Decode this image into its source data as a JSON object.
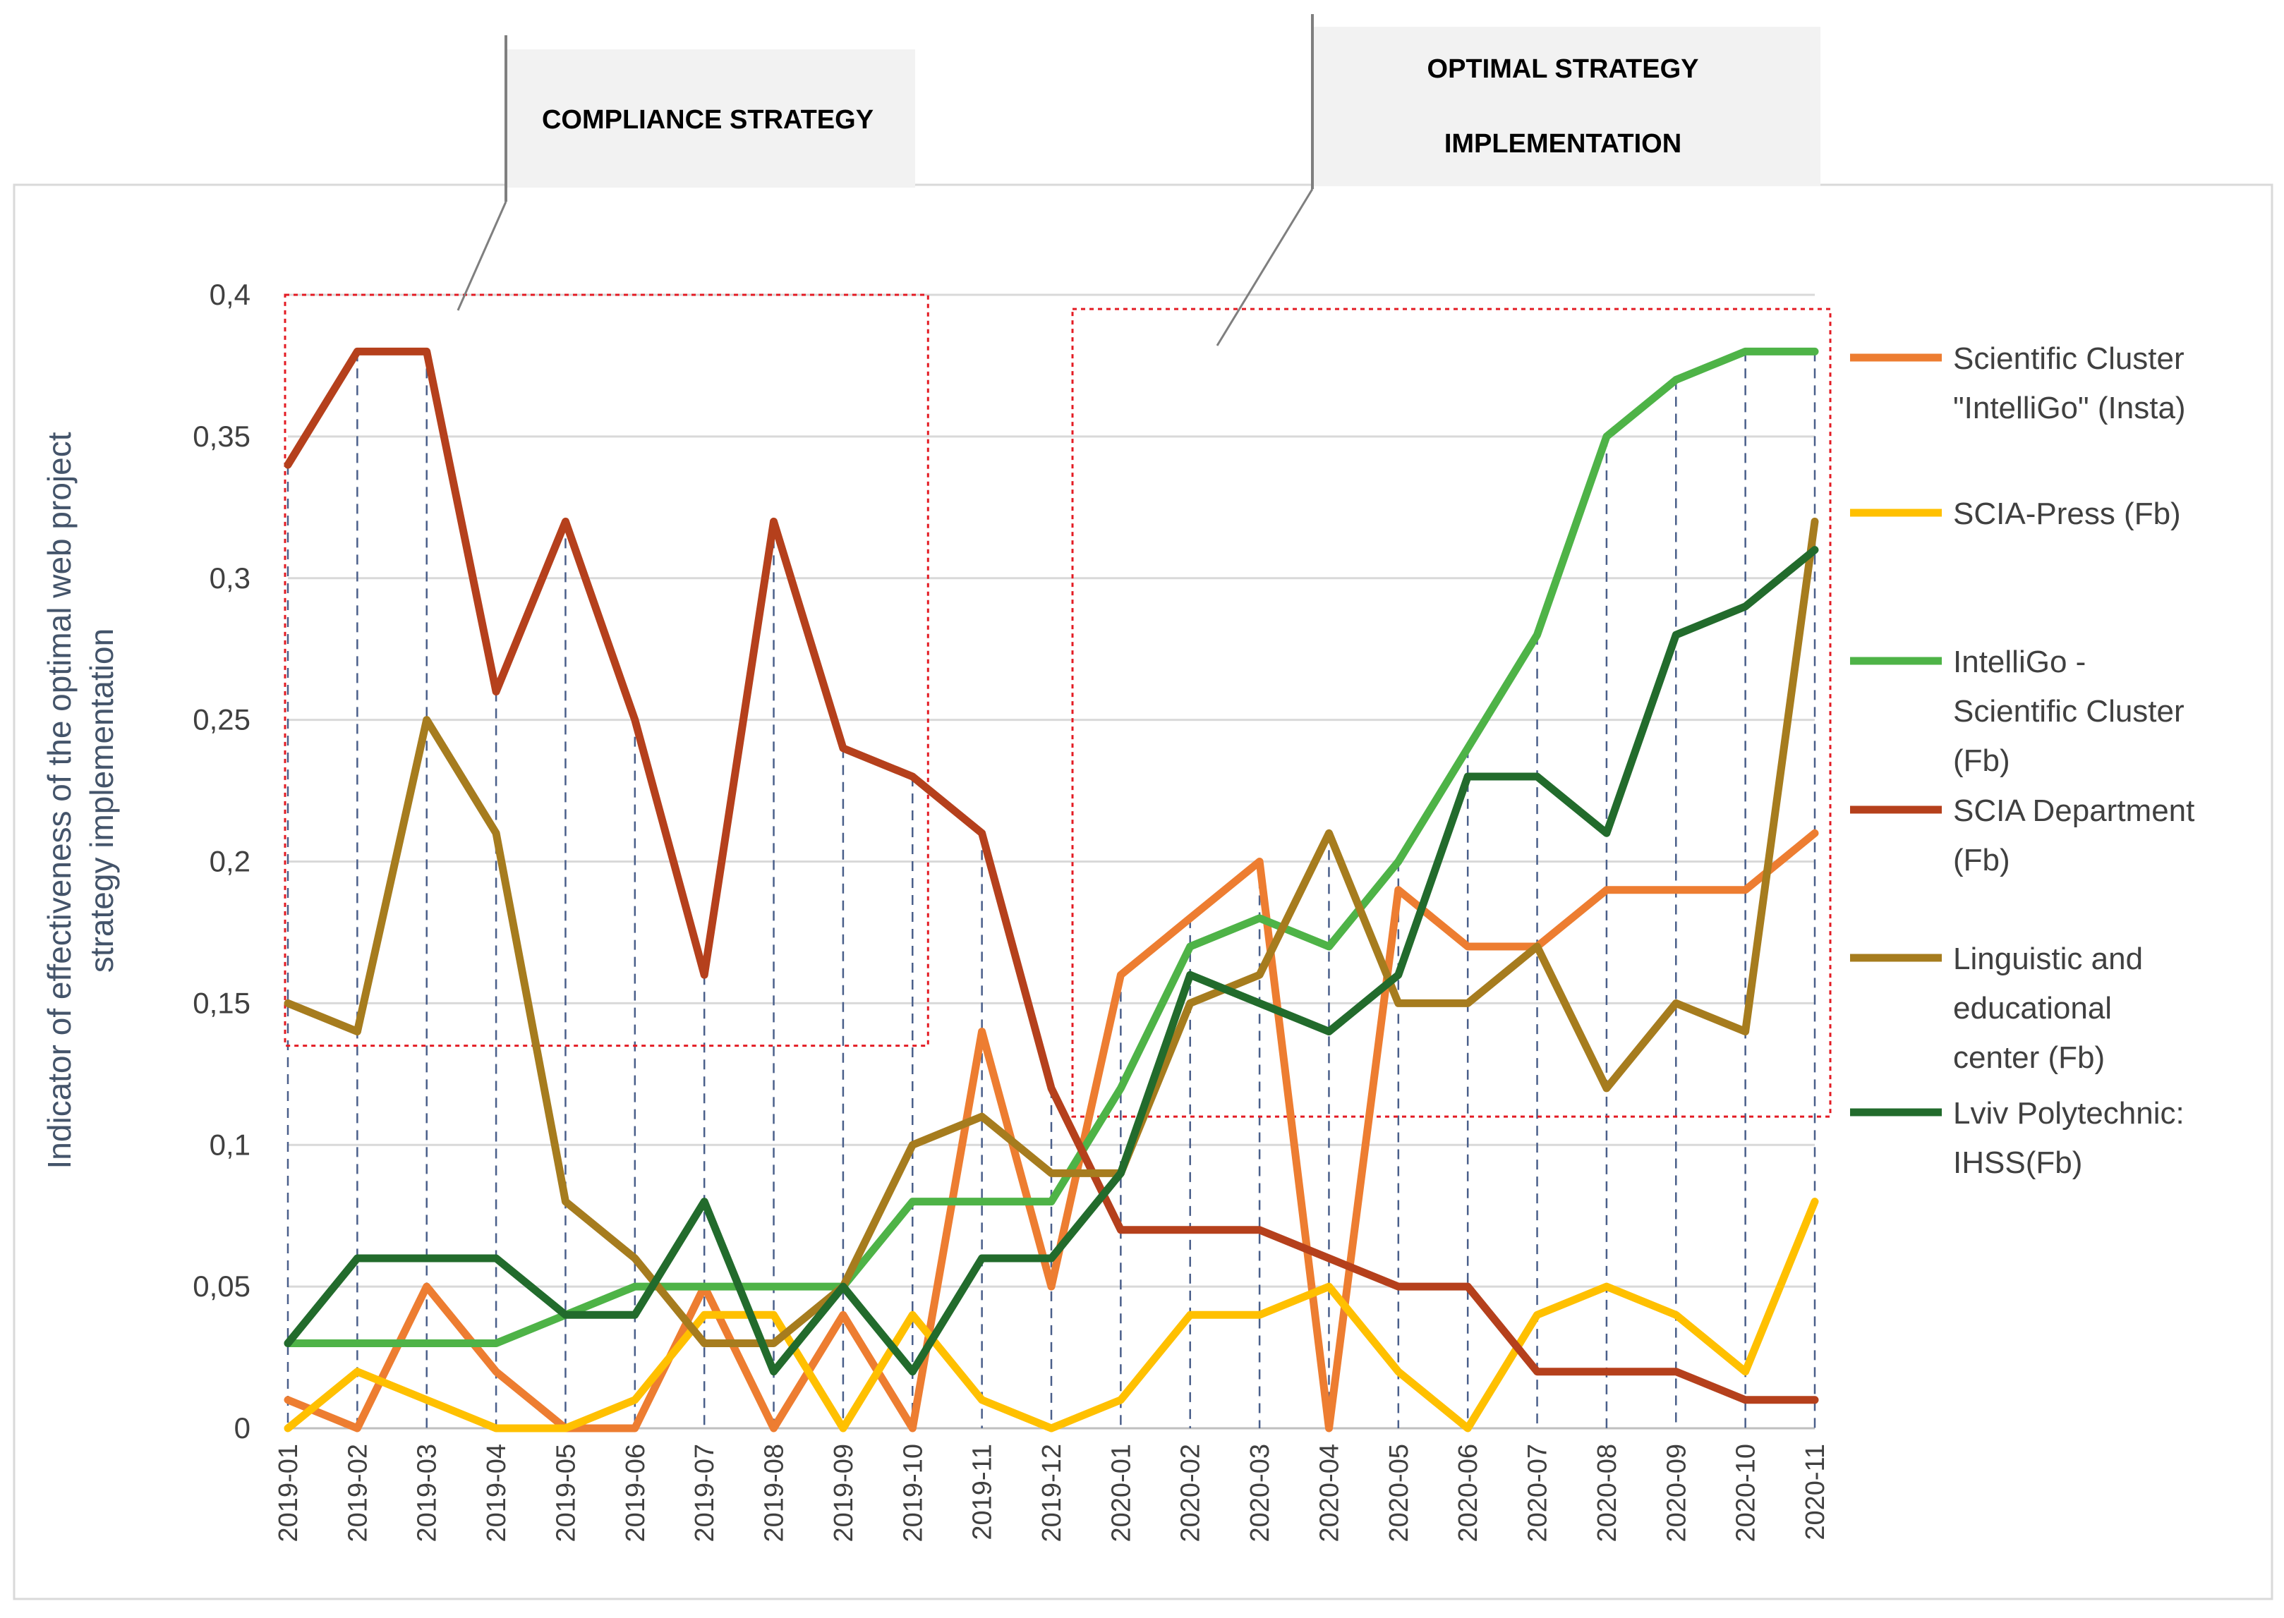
{
  "chart_data": {
    "type": "line",
    "title": "",
    "xlabel": "",
    "ylabel": "Indicator of effectiveness of the optimal web project strategy implementation",
    "ylabel_lines": [
      "Indicator of effectiveness of the optimal web project",
      "strategy implementation"
    ],
    "ylim": [
      0,
      0.4
    ],
    "yticks": [
      "0",
      "0,05",
      "0,1",
      "0,15",
      "0,2",
      "0,25",
      "0,3",
      "0,35",
      "0,4"
    ],
    "x": [
      "2019-01",
      "2019-02",
      "2019-03",
      "2019-04",
      "2019-05",
      "2019-06",
      "2019-07",
      "2019-08",
      "2019-09",
      "2019-10",
      "2019-11",
      "2019-12",
      "2020-01",
      "2020-02",
      "2020-03",
      "2020-04",
      "2020-05",
      "2020-06",
      "2020-07",
      "2020-08",
      "2020-09",
      "2020-10",
      "2020-11"
    ],
    "grid": true,
    "legend_position": "right",
    "series": [
      {
        "name": "Scientific Cluster \"IntelliGo\" (Insta)",
        "legend_lines": [
          "Scientific Cluster",
          "\"IntelliGo\" (Insta)"
        ],
        "color": "#ed7d31",
        "values": [
          0.01,
          0,
          0.05,
          0.02,
          0,
          0,
          0.05,
          0,
          0.04,
          0,
          0.14,
          0.05,
          0.16,
          0.18,
          0.2,
          0,
          0.19,
          0.17,
          0.17,
          0.19,
          0.19,
          0.19,
          0.21
        ]
      },
      {
        "name": "SCIA-Press (Fb)",
        "legend_lines": [
          "SCIA-Press (Fb)"
        ],
        "color": "#ffc000",
        "values": [
          0,
          0.02,
          0.01,
          0,
          0,
          0.01,
          0.04,
          0.04,
          0,
          0.04,
          0.01,
          0,
          0.01,
          0.04,
          0.04,
          0.05,
          0.02,
          0,
          0.04,
          0.05,
          0.04,
          0.02,
          0.08
        ]
      },
      {
        "name": "IntelliGo - Scientific Cluster (Fb)",
        "legend_lines": [
          "IntelliGo -",
          "Scientific Cluster",
          "(Fb)"
        ],
        "color": "#4eb347",
        "values": [
          0.03,
          0.03,
          0.03,
          0.03,
          0.04,
          0.05,
          0.05,
          0.05,
          0.05,
          0.08,
          0.08,
          0.08,
          0.12,
          0.17,
          0.18,
          0.17,
          0.2,
          0.24,
          0.28,
          0.35,
          0.37,
          0.38,
          0.38
        ]
      },
      {
        "name": "SCIA Department (Fb)",
        "legend_lines": [
          "SCIA Department",
          "(Fb)"
        ],
        "color": "#b5401c",
        "values": [
          0.34,
          0.38,
          0.38,
          0.26,
          0.32,
          0.25,
          0.16,
          0.32,
          0.24,
          0.23,
          0.21,
          0.12,
          0.07,
          0.07,
          0.07,
          0.06,
          0.05,
          0.05,
          0.02,
          0.02,
          0.02,
          0.01,
          0.01
        ]
      },
      {
        "name": "Linguistic and educational center (Fb)",
        "legend_lines": [
          "Linguistic and",
          "educational",
          "center (Fb)"
        ],
        "color": "#a67c1e",
        "values": [
          0.15,
          0.14,
          0.25,
          0.21,
          0.08,
          0.06,
          0.03,
          0.03,
          0.05,
          0.1,
          0.11,
          0.09,
          0.09,
          0.15,
          0.16,
          0.21,
          0.15,
          0.15,
          0.17,
          0.12,
          0.15,
          0.14,
          0.32
        ]
      },
      {
        "name": "Lviv Polytechnic: IHSS(Fb)",
        "legend_lines": [
          "Lviv Polytechnic:",
          "IHSS(Fb)"
        ],
        "color": "#226b2c",
        "values": [
          0.03,
          0.06,
          0.06,
          0.06,
          0.04,
          0.04,
          0.08,
          0.02,
          0.05,
          0.02,
          0.06,
          0.06,
          0.09,
          0.16,
          0.15,
          0.14,
          0.16,
          0.23,
          0.23,
          0.21,
          0.28,
          0.29,
          0.31
        ]
      }
    ],
    "annotations": [
      {
        "lines": [
          "COMPLIANCE STRATEGY"
        ],
        "region_x": [
          "2019-01",
          "2019-10"
        ],
        "region_y": [
          0.135,
          0.4
        ]
      },
      {
        "lines": [
          "OPTIMAL STRATEGY",
          "IMPLEMENTATION"
        ],
        "region_x": [
          "2019-12",
          "2020-11"
        ],
        "region_y": [
          0.11,
          0.395
        ]
      }
    ]
  }
}
